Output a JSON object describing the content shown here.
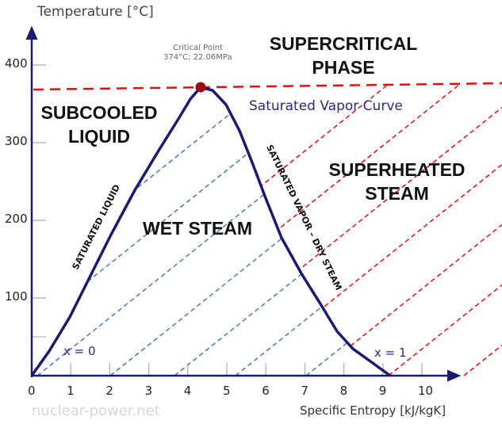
{
  "axes": {
    "y_title": "Temperature [°C]",
    "x_title": "Specific Entropy [kJ/kgK]",
    "y_ticks": [
      "100",
      "200",
      "300",
      "400"
    ],
    "x_ticks": [
      "0",
      "1",
      "2",
      "3",
      "4",
      "5",
      "6",
      "7",
      "8",
      "9",
      "10"
    ]
  },
  "critical_point": {
    "label": "Critical Point",
    "value": "374°C; 22.06MPa"
  },
  "regions": {
    "supercritical_1": "SUPERCRITICAL",
    "supercritical_2": "PHASE",
    "subcooled_1": "SUBCOOLED",
    "subcooled_2": "LIQUID",
    "superheated_1": "SUPERHEATED",
    "superheated_2": "STEAM",
    "wet": "WET STEAM"
  },
  "curves": {
    "vapor_curve": "Saturated Vapor Curve",
    "sat_liquid": "SATURATED LIQUID",
    "sat_vapor": "SATURATED VAPOR – DRY STEAM",
    "x0": "x = 0",
    "x1": "x = 1"
  },
  "watermark": "nuclear-power.net",
  "colors": {
    "axis": "#1a1a6e",
    "dome": "#1a1a6e",
    "quality_lines": "#4a7ab8",
    "isobars": "#e01010",
    "critical_point": "#9b1010"
  }
}
